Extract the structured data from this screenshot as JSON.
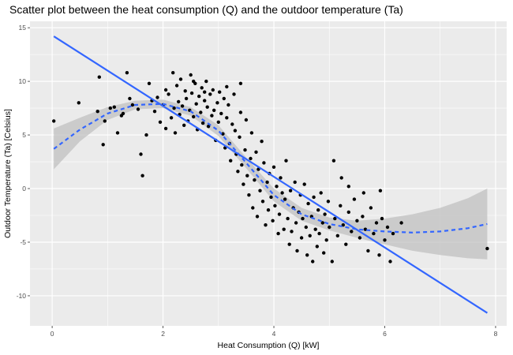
{
  "chart_data": {
    "type": "scatter",
    "title": "Scatter plot between the heat consumption (Q) and the outdoor temperature (Ta)",
    "xlabel": "Heat Consumption (Q) [kW]",
    "ylabel": "Outdoor Temperature (Ta) [Celsius]",
    "xlim": [
      -0.4,
      8.2
    ],
    "ylim": [
      -12.8,
      15.6
    ],
    "xticks": [
      0,
      2,
      4,
      6,
      8
    ],
    "yticks": [
      -10,
      -5,
      0,
      5,
      10,
      15
    ],
    "grid": true,
    "legend": "none",
    "colors": {
      "panel_bg": "#ebebeb",
      "grid": "#ffffff",
      "points": "#000000",
      "line": "#3366ff",
      "band": "#bdbdbd"
    },
    "linear_fit": {
      "x": [
        0.03,
        7.85
      ],
      "y": [
        14.2,
        -11.6
      ]
    },
    "smooth_fit": {
      "x": [
        0.03,
        0.5,
        1.0,
        1.5,
        2.0,
        2.5,
        3.0,
        3.5,
        4.0,
        4.5,
        5.0,
        5.5,
        6.0,
        6.5,
        7.0,
        7.5,
        7.85
      ],
      "y": [
        3.7,
        5.5,
        7.0,
        7.8,
        7.9,
        7.2,
        5.4,
        2.4,
        -0.6,
        -2.4,
        -3.3,
        -3.8,
        -4.0,
        -4.1,
        -4.0,
        -3.7,
        -3.3
      ],
      "band_upper": [
        5.6,
        6.6,
        7.6,
        8.2,
        8.3,
        7.6,
        5.9,
        2.9,
        0.0,
        -1.8,
        -2.7,
        -3.0,
        -2.8,
        -2.4,
        -1.8,
        -0.9,
        0.0
      ],
      "band_lower": [
        1.8,
        4.4,
        6.4,
        7.4,
        7.5,
        6.8,
        4.9,
        1.9,
        -1.2,
        -3.0,
        -3.9,
        -4.6,
        -5.2,
        -5.8,
        -6.2,
        -6.5,
        -6.6
      ]
    },
    "points": [
      [
        0.03,
        6.3
      ],
      [
        0.48,
        8.0
      ],
      [
        0.82,
        7.2
      ],
      [
        0.85,
        10.4
      ],
      [
        0.92,
        4.1
      ],
      [
        0.95,
        6.3
      ],
      [
        1.05,
        7.5
      ],
      [
        1.12,
        7.6
      ],
      [
        1.18,
        5.2
      ],
      [
        1.25,
        6.8
      ],
      [
        1.28,
        7.0
      ],
      [
        1.35,
        10.8
      ],
      [
        1.4,
        8.4
      ],
      [
        1.45,
        7.8
      ],
      [
        1.55,
        7.4
      ],
      [
        1.6,
        3.2
      ],
      [
        1.63,
        1.2
      ],
      [
        1.7,
        5.0
      ],
      [
        1.75,
        9.8
      ],
      [
        1.8,
        8.2
      ],
      [
        1.85,
        7.2
      ],
      [
        1.9,
        8.5
      ],
      [
        1.95,
        6.2
      ],
      [
        2.0,
        7.8
      ],
      [
        2.05,
        9.2
      ],
      [
        2.05,
        5.6
      ],
      [
        2.1,
        8.8
      ],
      [
        2.15,
        6.6
      ],
      [
        2.18,
        10.8
      ],
      [
        2.2,
        7.5
      ],
      [
        2.22,
        5.2
      ],
      [
        2.25,
        9.6
      ],
      [
        2.28,
        8.1
      ],
      [
        2.3,
        6.9
      ],
      [
        2.32,
        10.2
      ],
      [
        2.35,
        7.7
      ],
      [
        2.38,
        5.9
      ],
      [
        2.4,
        9.1
      ],
      [
        2.42,
        8.4
      ],
      [
        2.45,
        6.3
      ],
      [
        2.48,
        7.3
      ],
      [
        2.5,
        10.6
      ],
      [
        2.52,
        8.9
      ],
      [
        2.55,
        6.7
      ],
      [
        2.58,
        9.8
      ],
      [
        2.6,
        7.9
      ],
      [
        2.62,
        5.5
      ],
      [
        2.65,
        8.6
      ],
      [
        2.68,
        7.1
      ],
      [
        2.7,
        9.4
      ],
      [
        2.72,
        6.1
      ],
      [
        2.75,
        8.2
      ],
      [
        2.78,
        10.0
      ],
      [
        2.8,
        7.6
      ],
      [
        2.82,
        5.8
      ],
      [
        2.85,
        8.8
      ],
      [
        2.88,
        6.8
      ],
      [
        2.9,
        9.2
      ],
      [
        2.92,
        7.3
      ],
      [
        2.95,
        4.5
      ],
      [
        2.98,
        8.0
      ],
      [
        3.0,
        6.2
      ],
      [
        3.02,
        9.0
      ],
      [
        3.05,
        7.0
      ],
      [
        3.08,
        5.1
      ],
      [
        3.1,
        8.4
      ],
      [
        3.12,
        3.8
      ],
      [
        3.15,
        6.6
      ],
      [
        3.18,
        7.8
      ],
      [
        3.2,
        4.2
      ],
      [
        3.22,
        2.6
      ],
      [
        3.25,
        6.0
      ],
      [
        3.28,
        8.8
      ],
      [
        3.3,
        5.4
      ],
      [
        3.32,
        3.2
      ],
      [
        3.35,
        1.6
      ],
      [
        3.38,
        4.8
      ],
      [
        3.4,
        7.1
      ],
      [
        3.42,
        2.2
      ],
      [
        3.45,
        0.4
      ],
      [
        3.48,
        3.6
      ],
      [
        3.5,
        6.4
      ],
      [
        3.52,
        1.2
      ],
      [
        3.55,
        -0.6
      ],
      [
        3.58,
        2.8
      ],
      [
        3.6,
        5.2
      ],
      [
        3.62,
        -1.8
      ],
      [
        3.65,
        0.8
      ],
      [
        3.68,
        3.4
      ],
      [
        3.7,
        -2.6
      ],
      [
        3.72,
        1.8
      ],
      [
        3.75,
        -0.2
      ],
      [
        3.78,
        4.4
      ],
      [
        3.8,
        -1.2
      ],
      [
        3.82,
        2.4
      ],
      [
        3.85,
        -3.4
      ],
      [
        3.88,
        0.6
      ],
      [
        3.9,
        -2.0
      ],
      [
        3.92,
        1.4
      ],
      [
        3.95,
        -0.8
      ],
      [
        3.98,
        -3.0
      ],
      [
        4.0,
        2.0
      ],
      [
        4.02,
        -1.6
      ],
      [
        4.05,
        0.2
      ],
      [
        4.08,
        -4.2
      ],
      [
        4.1,
        -2.4
      ],
      [
        4.12,
        1.0
      ],
      [
        4.15,
        -0.4
      ],
      [
        4.18,
        -3.8
      ],
      [
        4.2,
        -1.0
      ],
      [
        4.22,
        2.6
      ],
      [
        4.25,
        -2.8
      ],
      [
        4.28,
        -5.2
      ],
      [
        4.3,
        -0.2
      ],
      [
        4.32,
        -4.0
      ],
      [
        4.35,
        -1.8
      ],
      [
        4.38,
        0.6
      ],
      [
        4.4,
        -3.2
      ],
      [
        4.42,
        -5.8
      ],
      [
        4.45,
        -2.2
      ],
      [
        4.48,
        -0.6
      ],
      [
        4.5,
        -4.6
      ],
      [
        4.52,
        -2.8
      ],
      [
        4.55,
        0.4
      ],
      [
        4.58,
        -3.6
      ],
      [
        4.6,
        -6.2
      ],
      [
        4.62,
        -1.4
      ],
      [
        4.65,
        -4.4
      ],
      [
        4.68,
        -2.6
      ],
      [
        4.7,
        -6.8
      ],
      [
        4.72,
        -0.8
      ],
      [
        4.75,
        -3.8
      ],
      [
        4.78,
        -5.4
      ],
      [
        4.8,
        -2.0
      ],
      [
        4.82,
        -4.2
      ],
      [
        4.85,
        -0.4
      ],
      [
        4.88,
        -3.2
      ],
      [
        4.9,
        -6.0
      ],
      [
        4.92,
        -2.4
      ],
      [
        4.95,
        -4.8
      ],
      [
        4.98,
        -1.2
      ],
      [
        5.0,
        -3.6
      ],
      [
        5.05,
        -6.8
      ],
      [
        5.1,
        -2.8
      ],
      [
        5.15,
        -4.4
      ],
      [
        5.2,
        -1.6
      ],
      [
        5.25,
        -3.4
      ],
      [
        5.3,
        -5.2
      ],
      [
        5.35,
        -2.2
      ],
      [
        5.4,
        -4.0
      ],
      [
        5.45,
        -1.0
      ],
      [
        5.5,
        -3.0
      ],
      [
        5.55,
        -4.6
      ],
      [
        5.6,
        -2.6
      ],
      [
        5.65,
        -3.8
      ],
      [
        5.7,
        -5.8
      ],
      [
        5.75,
        -1.8
      ],
      [
        5.8,
        -4.2
      ],
      [
        5.85,
        -3.2
      ],
      [
        5.9,
        -6.2
      ],
      [
        5.95,
        -2.8
      ],
      [
        6.0,
        -4.8
      ],
      [
        6.05,
        -3.6
      ],
      [
        6.1,
        -6.8
      ],
      [
        6.15,
        -4.2
      ],
      [
        6.3,
        -3.2
      ],
      [
        7.85,
        -5.6
      ],
      [
        5.08,
        2.6
      ],
      [
        5.22,
        1.0
      ],
      [
        5.35,
        0.2
      ],
      [
        5.62,
        -0.4
      ],
      [
        5.92,
        -0.2
      ],
      [
        3.15,
        9.5
      ],
      [
        2.55,
        10.0
      ],
      [
        2.75,
        9.0
      ],
      [
        3.4,
        9.8
      ]
    ]
  }
}
